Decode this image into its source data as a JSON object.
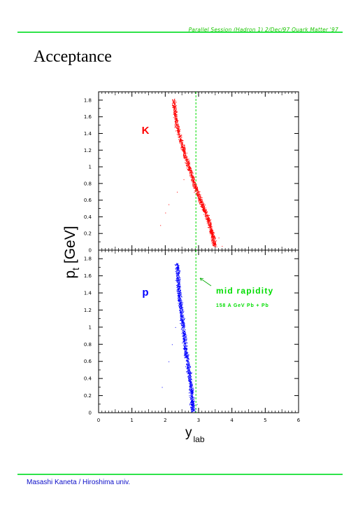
{
  "header": {
    "session": "Parallel Session (Hadron 1) 2/Dec/97 Quark Matter '97"
  },
  "slide": {
    "title": "Acceptance"
  },
  "footer": {
    "author": "Masashi Kaneta / Hiroshima univ."
  },
  "colors": {
    "accent_green": "#2fe34a",
    "kaon_red": "#ff0000",
    "proton_blue": "#0000ff",
    "annotation_green": "#00dd00"
  },
  "chart_data": [
    {
      "type": "scatter",
      "panel": "kaon",
      "label": "K",
      "xlim": [
        0,
        6
      ],
      "ylim": [
        0,
        1.9
      ],
      "yticks": [
        "0",
        "0.2",
        "0.4",
        "0.6",
        "0.8",
        "1",
        "1.2",
        "1.4",
        "1.6",
        "1.8"
      ],
      "ylabel_main": "p",
      "ylabel_sub": "t",
      "ylabel_unit": "[GeV]",
      "midline_x": 2.92,
      "series": [
        {
          "name": "K",
          "color": "#ff0000",
          "band": [
            [
              2.25,
              1.8
            ],
            [
              2.3,
              1.6
            ],
            [
              2.4,
              1.4
            ],
            [
              2.55,
              1.2
            ],
            [
              2.7,
              1.0
            ],
            [
              2.85,
              0.82
            ],
            [
              3.0,
              0.65
            ],
            [
              3.15,
              0.5
            ],
            [
              3.3,
              0.35
            ],
            [
              3.4,
              0.2
            ],
            [
              3.48,
              0.05
            ]
          ],
          "scatter_outliers": [
            [
              1.85,
              0.3
            ],
            [
              2.0,
              0.45
            ],
            [
              2.1,
              0.55
            ],
            [
              2.35,
              0.7
            ],
            [
              2.55,
              0.85
            ],
            [
              3.6,
              0.15
            ],
            [
              3.7,
              0.05
            ]
          ]
        }
      ]
    },
    {
      "type": "scatter",
      "panel": "proton",
      "label": "p",
      "xlim": [
        0,
        6
      ],
      "ylim": [
        0,
        1.9
      ],
      "xticks": [
        "0",
        "1",
        "2",
        "3",
        "4",
        "5",
        "6"
      ],
      "yticks": [
        "0",
        "0.2",
        "0.4",
        "0.6",
        "0.8",
        "1",
        "1.2",
        "1.4",
        "1.6",
        "1.8"
      ],
      "xlabel_main": "y",
      "xlabel_sub": "lab",
      "midline_x": 2.92,
      "annotation": {
        "text": "mid rapidity",
        "subtext": "158 A GeV Pb + Pb"
      },
      "series": [
        {
          "name": "p",
          "color": "#0000ff",
          "band": [
            [
              2.35,
              1.75
            ],
            [
              2.38,
              1.55
            ],
            [
              2.42,
              1.35
            ],
            [
              2.48,
              1.15
            ],
            [
              2.55,
              0.95
            ],
            [
              2.6,
              0.75
            ],
            [
              2.68,
              0.55
            ],
            [
              2.75,
              0.35
            ],
            [
              2.8,
              0.15
            ],
            [
              2.82,
              0.02
            ]
          ],
          "scatter_outliers": [
            [
              1.9,
              0.3
            ],
            [
              2.1,
              0.6
            ],
            [
              2.2,
              0.8
            ],
            [
              2.3,
              1.0
            ],
            [
              2.9,
              0.05
            ],
            [
              2.95,
              0.1
            ]
          ]
        }
      ]
    }
  ]
}
